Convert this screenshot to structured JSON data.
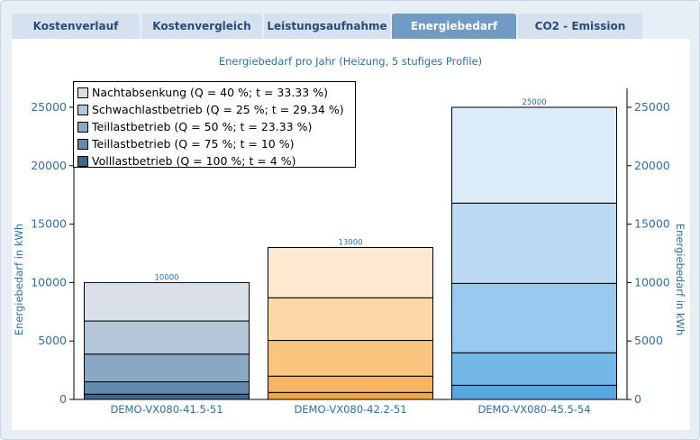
{
  "tabs": [
    {
      "label": "Kostenverlauf",
      "active": false
    },
    {
      "label": "Kostenvergleich",
      "active": false
    },
    {
      "label": "Leistungsaufnahme",
      "active": false
    },
    {
      "label": "Energiebedarf",
      "active": true
    },
    {
      "label": "CO2 - Emission",
      "active": false
    }
  ],
  "chart_data": {
    "type": "bar",
    "stacked": true,
    "title": "Energiebedarf pro Jahr (Heizung, 5 stufiges Profile)",
    "ylabel": "Energiebedarf in kWh",
    "ylabel_right": "Energiebedarf in kWh",
    "ylim": [
      0,
      27500
    ],
    "yticks": [
      "0",
      "5000",
      "10000",
      "15000",
      "20000",
      "25000"
    ],
    "ytick_values": [
      0,
      5000,
      10000,
      15000,
      20000,
      25000
    ],
    "categories": [
      "DEMO-VX080-41.5-51",
      "DEMO-VX080-42.2-51",
      "DEMO-VX080-45.5-54"
    ],
    "legend_position": "top-left",
    "series": [
      {
        "name": "Nachtabsenkung (Q = 40 %; t = 33.33 %)",
        "color": "#d8e0ea"
      },
      {
        "name": "Schwachlastbetrieb (Q = 25 %; t = 29.34 %)",
        "color": "#b3c6d8"
      },
      {
        "name": "Teillastbetrieb (Q = 50 %; t = 23.33 %)",
        "color": "#8aa8c4"
      },
      {
        "name": "Teillastbetrieb (Q = 75 %; t = 10 %)",
        "color": "#6489ad"
      },
      {
        "name": "Volllastbetrieb (Q = 100 %; t = 4 %)",
        "color": "#3d6791"
      }
    ],
    "bars": [
      {
        "category": "DEMO-VX080-41.5-51",
        "cumulative": [
          448,
          1510,
          3880,
          6710,
          10000
        ],
        "labels": [
          "448",
          "1510",
          "3880",
          "6710",
          "10000"
        ],
        "colors": [
          "#3d6791",
          "#6489ad",
          "#8aa8c4",
          "#b3c6d8",
          "#d8e0ea"
        ]
      },
      {
        "category": "DEMO-VX080-42.2-51",
        "cumulative": [
          594,
          1990,
          5050,
          8700,
          13000
        ],
        "labels": [
          "594",
          "1990",
          "5050",
          "8700",
          "13000"
        ],
        "colors": [
          "#f6a545",
          "#f7b564",
          "#f9c67f",
          "#fbd8a6",
          "#fde9cf"
        ]
      },
      {
        "category": "DEMO-VX080-45.5-54",
        "cumulative": [
          1210,
          3990,
          9930,
          16800,
          25000
        ],
        "labels": [
          "1210",
          "3990",
          "9930",
          "16800",
          "25000"
        ],
        "colors": [
          "#5aa6e0",
          "#75b7e8",
          "#99c9ee",
          "#bcdaf3",
          "#dcebf8"
        ]
      }
    ]
  }
}
